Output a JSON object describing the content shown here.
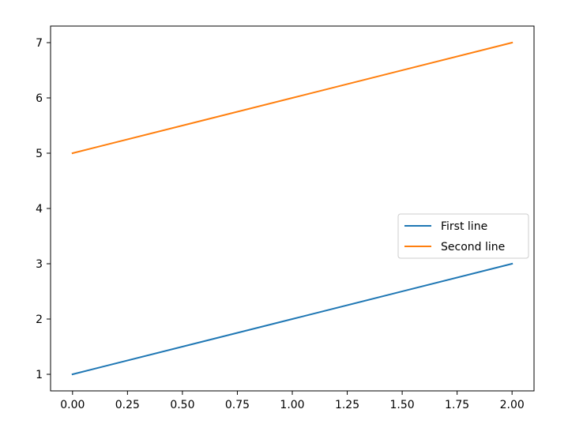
{
  "chart_data": {
    "type": "line",
    "title": "",
    "xlabel": "",
    "ylabel": "",
    "xlim": [
      -0.1,
      2.1
    ],
    "ylim": [
      0.7,
      7.3
    ],
    "x_ticks": [
      0.0,
      0.25,
      0.5,
      0.75,
      1.0,
      1.25,
      1.5,
      1.75,
      2.0
    ],
    "x_tick_labels": [
      "0.00",
      "0.25",
      "0.50",
      "0.75",
      "1.00",
      "1.25",
      "1.50",
      "1.75",
      "2.00"
    ],
    "y_ticks": [
      1,
      2,
      3,
      4,
      5,
      6,
      7
    ],
    "y_tick_labels": [
      "1",
      "2",
      "3",
      "4",
      "5",
      "6",
      "7"
    ],
    "grid": false,
    "legend": {
      "placement": "center-right"
    },
    "series": [
      {
        "name": "First line",
        "x": [
          0,
          1,
          2
        ],
        "y": [
          1,
          2,
          3
        ],
        "color": "#1f77b4"
      },
      {
        "name": "Second line",
        "x": [
          0,
          1,
          2
        ],
        "y": [
          5,
          6,
          7
        ],
        "color": "#ff7f0e"
      }
    ]
  }
}
